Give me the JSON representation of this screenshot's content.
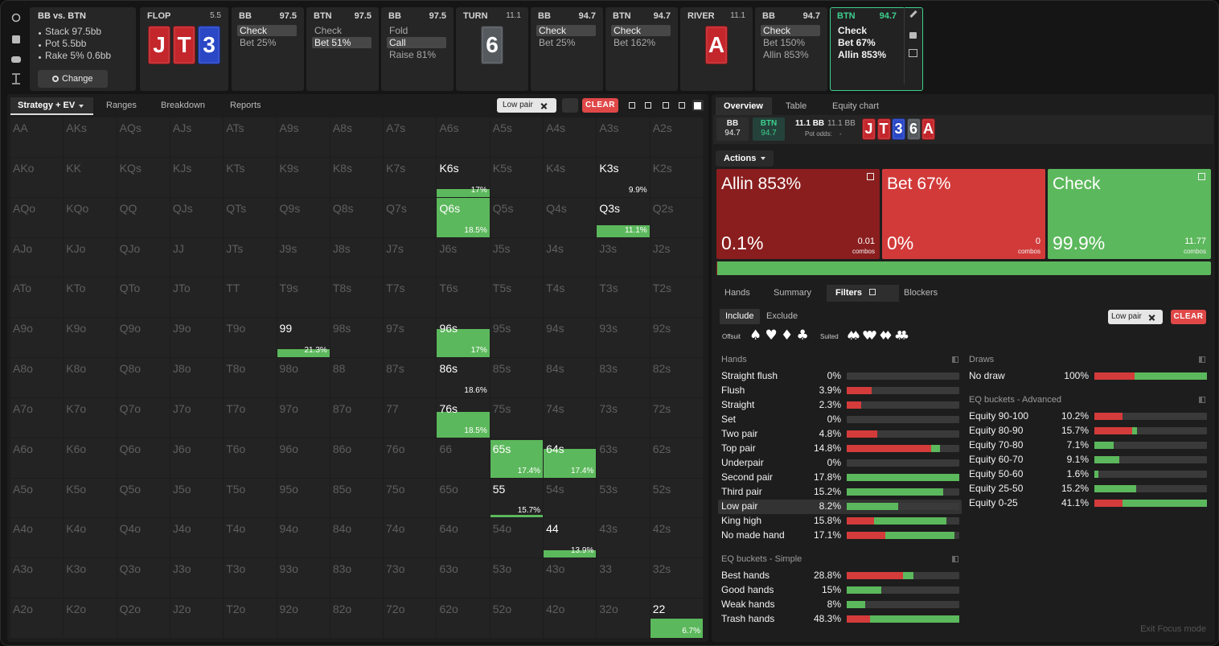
{
  "info": {
    "title": "BB vs. BTN",
    "lines": [
      "Stack 97.5bb",
      "Pot 5.5bb",
      "Rake 5% 0.6bb"
    ],
    "button": "Change"
  },
  "streets": [
    {
      "kind": "street",
      "label": "FLOP",
      "pot": "5.5",
      "cards": [
        {
          "rank": "J",
          "color": "#c3262b"
        },
        {
          "rank": "T",
          "color": "#c3262b"
        },
        {
          "rank": "3",
          "color": "#2a47c6"
        }
      ]
    },
    {
      "kind": "action",
      "player": "BB",
      "stack": "97.5",
      "options": [
        "Check",
        "Bet 25%"
      ],
      "selected": 0
    },
    {
      "kind": "action",
      "player": "BTN",
      "stack": "97.5",
      "options": [
        "Check",
        "Bet 51%"
      ],
      "selected": 1
    },
    {
      "kind": "action",
      "player": "BB",
      "stack": "97.5",
      "options": [
        "Fold",
        "Call",
        "Raise 81%"
      ],
      "selected": 1
    },
    {
      "kind": "street",
      "label": "TURN",
      "pot": "11.1",
      "cards": [
        {
          "rank": "6",
          "color": "#555a5e"
        }
      ]
    },
    {
      "kind": "action",
      "player": "BB",
      "stack": "94.7",
      "options": [
        "Check",
        "Bet 25%"
      ],
      "selected": 0
    },
    {
      "kind": "action",
      "player": "BTN",
      "stack": "94.7",
      "options": [
        "Check",
        "Bet 162%"
      ],
      "selected": 0
    },
    {
      "kind": "street",
      "label": "RIVER",
      "pot": "11.1",
      "cards": [
        {
          "rank": "A",
          "color": "#c3262b"
        }
      ]
    },
    {
      "kind": "action",
      "player": "BB",
      "stack": "94.7",
      "options": [
        "Check",
        "Bet 150%",
        "Allin 853%"
      ],
      "selected": 0
    },
    {
      "kind": "action",
      "player": "BTN",
      "stack": "94.7",
      "options": [
        "Check",
        "Bet 67%",
        "Allin 853%"
      ],
      "active": true
    }
  ],
  "left": {
    "tabs": [
      "Strategy + EV",
      "Ranges",
      "Breakdown",
      "Reports"
    ],
    "chip": "Low pair",
    "clear": "CLEAR"
  },
  "grid": {
    "rows": [
      [
        "AA",
        "AKs",
        "AQs",
        "AJs",
        "ATs",
        "A9s",
        "A8s",
        "A7s",
        "A6s",
        "A5s",
        "A4s",
        "A3s",
        "A2s"
      ],
      [
        "AKo",
        "KK",
        "KQs",
        "KJs",
        "KTs",
        "K9s",
        "K8s",
        "K7s",
        "K6s",
        "K5s",
        "K4s",
        "K3s",
        "K2s"
      ],
      [
        "AQo",
        "KQo",
        "QQ",
        "QJs",
        "QTs",
        "Q9s",
        "Q8s",
        "Q7s",
        "Q6s",
        "Q5s",
        "Q4s",
        "Q3s",
        "Q2s"
      ],
      [
        "AJo",
        "KJo",
        "QJo",
        "JJ",
        "JTs",
        "J9s",
        "J8s",
        "J7s",
        "J6s",
        "J5s",
        "J4s",
        "J3s",
        "J2s"
      ],
      [
        "ATo",
        "KTo",
        "QTo",
        "JTo",
        "TT",
        "T9s",
        "T8s",
        "T7s",
        "T6s",
        "T5s",
        "T4s",
        "T3s",
        "T2s"
      ],
      [
        "A9o",
        "K9o",
        "Q9o",
        "J9o",
        "T9o",
        "99",
        "98s",
        "97s",
        "96s",
        "95s",
        "94s",
        "93s",
        "92s"
      ],
      [
        "A8o",
        "K8o",
        "Q8o",
        "J8o",
        "T8o",
        "98o",
        "88",
        "87s",
        "86s",
        "85s",
        "84s",
        "83s",
        "82s"
      ],
      [
        "A7o",
        "K7o",
        "Q7o",
        "J7o",
        "T7o",
        "97o",
        "87o",
        "77",
        "76s",
        "75s",
        "74s",
        "73s",
        "72s"
      ],
      [
        "A6o",
        "K6o",
        "Q6o",
        "J6o",
        "T6o",
        "96o",
        "86o",
        "76o",
        "66",
        "65s",
        "64s",
        "63s",
        "62s"
      ],
      [
        "A5o",
        "K5o",
        "Q5o",
        "J5o",
        "T5o",
        "95o",
        "85o",
        "75o",
        "65o",
        "55",
        "54s",
        "53s",
        "52s"
      ],
      [
        "A4o",
        "K4o",
        "Q4o",
        "J4o",
        "T4o",
        "94o",
        "84o",
        "74o",
        "64o",
        "54o",
        "44",
        "43s",
        "42s"
      ],
      [
        "A3o",
        "K3o",
        "Q3o",
        "J3o",
        "T3o",
        "93o",
        "83o",
        "73o",
        "63o",
        "53o",
        "43o",
        "33",
        "32s"
      ],
      [
        "A2o",
        "K2o",
        "Q2o",
        "J2o",
        "T2o",
        "92o",
        "82o",
        "72o",
        "62o",
        "52o",
        "42o",
        "32o",
        "22"
      ]
    ],
    "color": "#5cb85c",
    "highlights": [
      {
        "row": 1,
        "col": 8,
        "label": "17%",
        "weight": 0.2
      },
      {
        "row": 1,
        "col": 11,
        "label": "9.9%",
        "weight": 0
      },
      {
        "row": 2,
        "col": 8,
        "label": "18.5%",
        "weight": 1
      },
      {
        "row": 2,
        "col": 11,
        "label": "11.1%",
        "weight": 0.3
      },
      {
        "row": 5,
        "col": 5,
        "label": "21.3%",
        "weight": 0.2
      },
      {
        "row": 5,
        "col": 8,
        "label": "17%",
        "weight": 0.72
      },
      {
        "row": 6,
        "col": 8,
        "label": "18.6%",
        "weight": 0
      },
      {
        "row": 7,
        "col": 8,
        "label": "18.5%",
        "weight": 0.66
      },
      {
        "row": 8,
        "col": 9,
        "label": "17.4%",
        "weight": 0.95
      },
      {
        "row": 8,
        "col": 10,
        "label": "17.4%",
        "weight": 0.72
      },
      {
        "row": 9,
        "col": 9,
        "label": "15.7%",
        "weight": 0.08
      },
      {
        "row": 10,
        "col": 10,
        "label": "13.9%",
        "weight": 0.2
      },
      {
        "row": 12,
        "col": 12,
        "label": "6.7%",
        "weight": 0.5
      }
    ]
  },
  "right": {
    "tabs": [
      "Overview",
      "Table",
      "Equity chart"
    ],
    "players": [
      {
        "name": "BB",
        "stack": "94.7"
      },
      {
        "name": "BTN",
        "stack": "94.7",
        "active": true
      }
    ],
    "pot": "11.1 BB",
    "pot_alt": "11.1 BB",
    "pot_odds_label": "Pot odds:",
    "pot_odds": "-",
    "board": [
      {
        "rank": "J",
        "color": "#c3262b"
      },
      {
        "rank": "T",
        "color": "#c3262b"
      },
      {
        "rank": "3",
        "color": "#2a47c6"
      },
      {
        "rank": "6",
        "color": "#555a5e"
      },
      {
        "rank": "A",
        "color": "#c3262b"
      }
    ],
    "actions_label": "Actions",
    "combos_label": "combos",
    "actions": [
      {
        "name": "Allin 853%",
        "value": 0.1,
        "value_label": "0.1%",
        "combos": "0.01",
        "color": "#8a1e1e"
      },
      {
        "name": "Bet 67%",
        "value": 0,
        "value_label": "0%",
        "combos": "0",
        "color": "#d23a3a"
      },
      {
        "name": "Check",
        "value": 99.9,
        "value_label": "99.9%",
        "combos": "11.77",
        "color": "#5cb85c"
      }
    ],
    "sub_tabs": [
      "Hands",
      "Summary",
      "Filters",
      "Blockers"
    ],
    "include": "Include",
    "exclude": "Exclude",
    "offsuit": "Offsuit",
    "offsuit_suits": [
      "♠",
      "♥",
      "♦",
      "♣"
    ],
    "suited": "Suited",
    "suited_suits": [
      "♠♠",
      "♥♥",
      "♦♦",
      "♣♣"
    ],
    "chip": "Low pair",
    "clear": "CLEAR",
    "bar_colors": {
      "allin": "#d43b3b",
      "rest": "#5cb85c"
    },
    "sections": [
      {
        "title": "Hands",
        "rows": [
          {
            "name": "Straight flush",
            "value": 0,
            "value_label": "0%",
            "allin": 0
          },
          {
            "name": "Flush",
            "value": 3.9,
            "value_label": "3.9%",
            "allin": 1
          },
          {
            "name": "Straight",
            "value": 2.3,
            "value_label": "2.3%",
            "allin": 1
          },
          {
            "name": "Set",
            "value": 0,
            "value_label": "0%",
            "allin": 0
          },
          {
            "name": "Two pair",
            "value": 4.8,
            "value_label": "4.8%",
            "allin": 1
          },
          {
            "name": "Top pair",
            "value": 14.8,
            "value_label": "14.8%",
            "allin": 0.9
          },
          {
            "name": "Underpair",
            "value": 0,
            "value_label": "0%",
            "allin": 0
          },
          {
            "name": "Second pair",
            "value": 17.8,
            "value_label": "17.8%",
            "allin": 0
          },
          {
            "name": "Third pair",
            "value": 15.2,
            "value_label": "15.2%",
            "allin": 0
          },
          {
            "name": "Low pair",
            "value": 8.2,
            "value_label": "8.2%",
            "allin": 0,
            "selected": true
          },
          {
            "name": "King high",
            "value": 15.8,
            "value_label": "15.8%",
            "allin": 0.27
          },
          {
            "name": "No made hand",
            "value": 17.1,
            "value_label": "17.1%",
            "allin": 0.36
          }
        ]
      },
      {
        "title": "EQ buckets - Simple",
        "rows": [
          {
            "name": "Best hands",
            "value": 28.8,
            "value_label": "28.8%",
            "allin": 0.84
          },
          {
            "name": "Good hands",
            "value": 15,
            "value_label": "15%",
            "allin": 0
          },
          {
            "name": "Weak hands",
            "value": 8,
            "value_label": "8%",
            "allin": 0
          },
          {
            "name": "Trash hands",
            "value": 48.3,
            "value_label": "48.3%",
            "allin": 0.21
          }
        ]
      },
      {
        "title": "Draws",
        "rows": [
          {
            "name": "No draw",
            "value": 100,
            "value_label": "100%",
            "allin": 0.36
          }
        ]
      },
      {
        "title": "EQ buckets - Advanced",
        "rows": [
          {
            "name": "Equity 90-100",
            "value": 10.2,
            "value_label": "10.2%",
            "allin": 1
          },
          {
            "name": "Equity 80-90",
            "value": 15.7,
            "value_label": "15.7%",
            "allin": 0.87
          },
          {
            "name": "Equity 70-80",
            "value": 7.1,
            "value_label": "7.1%",
            "allin": 0
          },
          {
            "name": "Equity 60-70",
            "value": 9.1,
            "value_label": "9.1%",
            "allin": 0
          },
          {
            "name": "Equity 50-60",
            "value": 1.6,
            "value_label": "1.6%",
            "allin": 0
          },
          {
            "name": "Equity 25-50",
            "value": 15.2,
            "value_label": "15.2%",
            "allin": 0
          },
          {
            "name": "Equity 0-25",
            "value": 41.1,
            "value_label": "41.1%",
            "allin": 0.25
          }
        ]
      }
    ],
    "footer": "Exit Focus mode"
  }
}
